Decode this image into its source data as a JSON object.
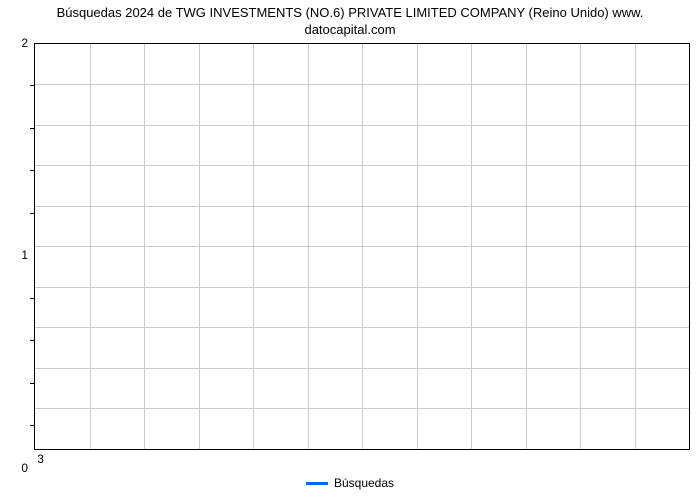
{
  "chart": {
    "type": "line",
    "title_line1": "Búsquedas 2024 de TWG INVESTMENTS (NO.6) PRIVATE LIMITED COMPANY (Reino Unido) www.",
    "title_line2": "datocapital.com",
    "title_fontsize": 13,
    "background_color": "#ffffff",
    "border_color": "#000000",
    "grid_color": "#cccccc",
    "y_axis": {
      "min": 0,
      "max": 2,
      "major_ticks": [
        0,
        1,
        2
      ],
      "minor_tick_count_between": 4,
      "label_fontsize": 12
    },
    "x_axis": {
      "ticks": [
        3
      ],
      "grid_lines": 12,
      "label_fontsize": 12
    },
    "series": [
      {
        "name": "Búsquedas",
        "color": "#0066ff",
        "line_width": 3,
        "data": []
      }
    ],
    "legend": {
      "position": "bottom",
      "items": [
        {
          "label": "Búsquedas",
          "color": "#0066ff"
        }
      ]
    }
  }
}
